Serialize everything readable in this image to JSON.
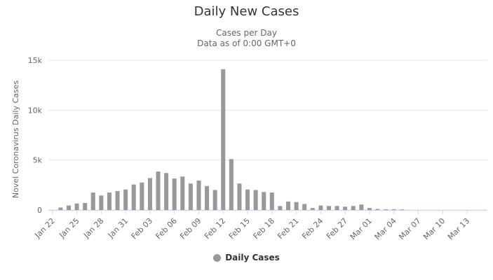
{
  "chart_data": {
    "type": "bar",
    "title": "Daily New Cases",
    "subtitle": [
      "Cases per Day",
      "Data as of 0:00 GMT+0"
    ],
    "ylabel": "Novel Coronavirus Daily Cases",
    "xlabel": "",
    "ylim": [
      0,
      15000
    ],
    "yticks": [
      0,
      5000,
      10000,
      15000
    ],
    "ytick_labels": [
      "0",
      "5k",
      "10k",
      "15k"
    ],
    "grid": true,
    "legend_position": "bottom",
    "bar_color": "#999999",
    "categories": [
      "Jan 22",
      "Jan 23",
      "Jan 24",
      "Jan 25",
      "Jan 26",
      "Jan 27",
      "Jan 28",
      "Jan 29",
      "Jan 30",
      "Jan 31",
      "Feb 01",
      "Feb 02",
      "Feb 03",
      "Feb 04",
      "Feb 05",
      "Feb 06",
      "Feb 07",
      "Feb 08",
      "Feb 09",
      "Feb 10",
      "Feb 11",
      "Feb 12",
      "Feb 13",
      "Feb 14",
      "Feb 15",
      "Feb 16",
      "Feb 17",
      "Feb 18",
      "Feb 19",
      "Feb 20",
      "Feb 21",
      "Feb 22",
      "Feb 23",
      "Feb 24",
      "Feb 25",
      "Feb 26",
      "Feb 27",
      "Feb 28",
      "Feb 29",
      "Mar 01",
      "Mar 02",
      "Mar 03",
      "Mar 04",
      "Mar 05",
      "Mar 06",
      "Mar 07",
      "Mar 08",
      "Mar 09",
      "Mar 10",
      "Mar 11",
      "Mar 12",
      "Mar 13",
      "Mar 14",
      "Mar 15"
    ],
    "tick_labels": [
      "Jan 22",
      "Jan 25",
      "Jan 28",
      "Jan 31",
      "Feb 03",
      "Feb 06",
      "Feb 09",
      "Feb 12",
      "Feb 15",
      "Feb 18",
      "Feb 21",
      "Feb 24",
      "Feb 27",
      "Mar 01",
      "Mar 04",
      "Mar 07",
      "Mar 10",
      "Mar 13"
    ],
    "series": [
      {
        "name": "Daily Cases",
        "values": [
          0,
          250,
          450,
          650,
          700,
          1750,
          1450,
          1750,
          1900,
          2050,
          2550,
          2750,
          3200,
          3850,
          3700,
          3150,
          3350,
          2650,
          2950,
          2400,
          2000,
          14100,
          5100,
          2650,
          2050,
          2000,
          1800,
          1750,
          400,
          850,
          800,
          600,
          200,
          450,
          400,
          400,
          330,
          400,
          550,
          200,
          100,
          70,
          80,
          60,
          0,
          0,
          0,
          0,
          0,
          0,
          0,
          0,
          0,
          0
        ]
      }
    ]
  }
}
